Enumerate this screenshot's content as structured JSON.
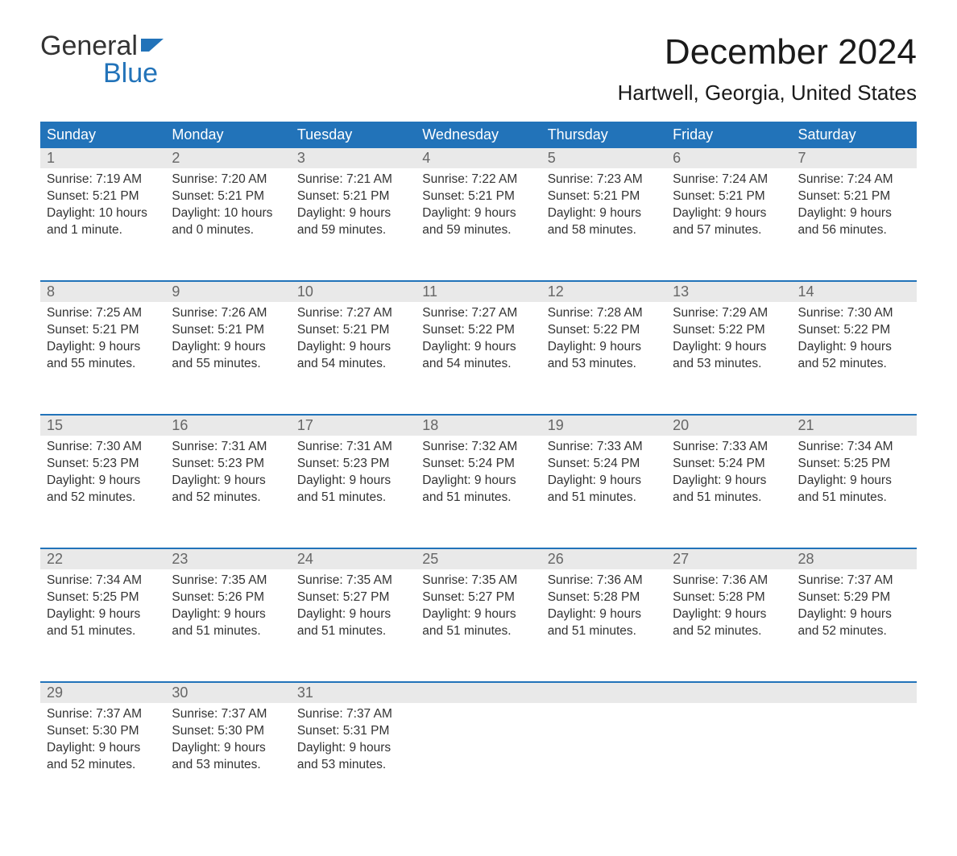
{
  "logo": {
    "top": "General",
    "bottom": "Blue",
    "text_color": "#333333",
    "accent_color": "#2273b9"
  },
  "title": "December 2024",
  "location": "Hartwell, Georgia, United States",
  "header_bg": "#2273b9",
  "header_text": "#ffffff",
  "daynum_bg": "#e9e9e9",
  "daynum_text": "#666666",
  "body_text": "#333333",
  "background": "#ffffff",
  "border_color": "#2273b9",
  "font_family": "Arial",
  "title_fontsize": 44,
  "location_fontsize": 26,
  "header_fontsize": 18,
  "body_fontsize": 15.5,
  "columns": [
    "Sunday",
    "Monday",
    "Tuesday",
    "Wednesday",
    "Thursday",
    "Friday",
    "Saturday"
  ],
  "weeks": [
    [
      {
        "n": "1",
        "sr": "Sunrise: 7:19 AM",
        "ss": "Sunset: 5:21 PM",
        "d1": "Daylight: 10 hours",
        "d2": "and 1 minute."
      },
      {
        "n": "2",
        "sr": "Sunrise: 7:20 AM",
        "ss": "Sunset: 5:21 PM",
        "d1": "Daylight: 10 hours",
        "d2": "and 0 minutes."
      },
      {
        "n": "3",
        "sr": "Sunrise: 7:21 AM",
        "ss": "Sunset: 5:21 PM",
        "d1": "Daylight: 9 hours",
        "d2": "and 59 minutes."
      },
      {
        "n": "4",
        "sr": "Sunrise: 7:22 AM",
        "ss": "Sunset: 5:21 PM",
        "d1": "Daylight: 9 hours",
        "d2": "and 59 minutes."
      },
      {
        "n": "5",
        "sr": "Sunrise: 7:23 AM",
        "ss": "Sunset: 5:21 PM",
        "d1": "Daylight: 9 hours",
        "d2": "and 58 minutes."
      },
      {
        "n": "6",
        "sr": "Sunrise: 7:24 AM",
        "ss": "Sunset: 5:21 PM",
        "d1": "Daylight: 9 hours",
        "d2": "and 57 minutes."
      },
      {
        "n": "7",
        "sr": "Sunrise: 7:24 AM",
        "ss": "Sunset: 5:21 PM",
        "d1": "Daylight: 9 hours",
        "d2": "and 56 minutes."
      }
    ],
    [
      {
        "n": "8",
        "sr": "Sunrise: 7:25 AM",
        "ss": "Sunset: 5:21 PM",
        "d1": "Daylight: 9 hours",
        "d2": "and 55 minutes."
      },
      {
        "n": "9",
        "sr": "Sunrise: 7:26 AM",
        "ss": "Sunset: 5:21 PM",
        "d1": "Daylight: 9 hours",
        "d2": "and 55 minutes."
      },
      {
        "n": "10",
        "sr": "Sunrise: 7:27 AM",
        "ss": "Sunset: 5:21 PM",
        "d1": "Daylight: 9 hours",
        "d2": "and 54 minutes."
      },
      {
        "n": "11",
        "sr": "Sunrise: 7:27 AM",
        "ss": "Sunset: 5:22 PM",
        "d1": "Daylight: 9 hours",
        "d2": "and 54 minutes."
      },
      {
        "n": "12",
        "sr": "Sunrise: 7:28 AM",
        "ss": "Sunset: 5:22 PM",
        "d1": "Daylight: 9 hours",
        "d2": "and 53 minutes."
      },
      {
        "n": "13",
        "sr": "Sunrise: 7:29 AM",
        "ss": "Sunset: 5:22 PM",
        "d1": "Daylight: 9 hours",
        "d2": "and 53 minutes."
      },
      {
        "n": "14",
        "sr": "Sunrise: 7:30 AM",
        "ss": "Sunset: 5:22 PM",
        "d1": "Daylight: 9 hours",
        "d2": "and 52 minutes."
      }
    ],
    [
      {
        "n": "15",
        "sr": "Sunrise: 7:30 AM",
        "ss": "Sunset: 5:23 PM",
        "d1": "Daylight: 9 hours",
        "d2": "and 52 minutes."
      },
      {
        "n": "16",
        "sr": "Sunrise: 7:31 AM",
        "ss": "Sunset: 5:23 PM",
        "d1": "Daylight: 9 hours",
        "d2": "and 52 minutes."
      },
      {
        "n": "17",
        "sr": "Sunrise: 7:31 AM",
        "ss": "Sunset: 5:23 PM",
        "d1": "Daylight: 9 hours",
        "d2": "and 51 minutes."
      },
      {
        "n": "18",
        "sr": "Sunrise: 7:32 AM",
        "ss": "Sunset: 5:24 PM",
        "d1": "Daylight: 9 hours",
        "d2": "and 51 minutes."
      },
      {
        "n": "19",
        "sr": "Sunrise: 7:33 AM",
        "ss": "Sunset: 5:24 PM",
        "d1": "Daylight: 9 hours",
        "d2": "and 51 minutes."
      },
      {
        "n": "20",
        "sr": "Sunrise: 7:33 AM",
        "ss": "Sunset: 5:24 PM",
        "d1": "Daylight: 9 hours",
        "d2": "and 51 minutes."
      },
      {
        "n": "21",
        "sr": "Sunrise: 7:34 AM",
        "ss": "Sunset: 5:25 PM",
        "d1": "Daylight: 9 hours",
        "d2": "and 51 minutes."
      }
    ],
    [
      {
        "n": "22",
        "sr": "Sunrise: 7:34 AM",
        "ss": "Sunset: 5:25 PM",
        "d1": "Daylight: 9 hours",
        "d2": "and 51 minutes."
      },
      {
        "n": "23",
        "sr": "Sunrise: 7:35 AM",
        "ss": "Sunset: 5:26 PM",
        "d1": "Daylight: 9 hours",
        "d2": "and 51 minutes."
      },
      {
        "n": "24",
        "sr": "Sunrise: 7:35 AM",
        "ss": "Sunset: 5:27 PM",
        "d1": "Daylight: 9 hours",
        "d2": "and 51 minutes."
      },
      {
        "n": "25",
        "sr": "Sunrise: 7:35 AM",
        "ss": "Sunset: 5:27 PM",
        "d1": "Daylight: 9 hours",
        "d2": "and 51 minutes."
      },
      {
        "n": "26",
        "sr": "Sunrise: 7:36 AM",
        "ss": "Sunset: 5:28 PM",
        "d1": "Daylight: 9 hours",
        "d2": "and 51 minutes."
      },
      {
        "n": "27",
        "sr": "Sunrise: 7:36 AM",
        "ss": "Sunset: 5:28 PM",
        "d1": "Daylight: 9 hours",
        "d2": "and 52 minutes."
      },
      {
        "n": "28",
        "sr": "Sunrise: 7:37 AM",
        "ss": "Sunset: 5:29 PM",
        "d1": "Daylight: 9 hours",
        "d2": "and 52 minutes."
      }
    ],
    [
      {
        "n": "29",
        "sr": "Sunrise: 7:37 AM",
        "ss": "Sunset: 5:30 PM",
        "d1": "Daylight: 9 hours",
        "d2": "and 52 minutes."
      },
      {
        "n": "30",
        "sr": "Sunrise: 7:37 AM",
        "ss": "Sunset: 5:30 PM",
        "d1": "Daylight: 9 hours",
        "d2": "and 53 minutes."
      },
      {
        "n": "31",
        "sr": "Sunrise: 7:37 AM",
        "ss": "Sunset: 5:31 PM",
        "d1": "Daylight: 9 hours",
        "d2": "and 53 minutes."
      },
      null,
      null,
      null,
      null
    ]
  ]
}
